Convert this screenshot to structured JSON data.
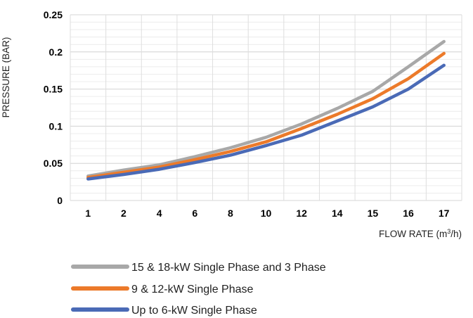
{
  "chart_data": {
    "type": "line",
    "categories": [
      "1",
      "2",
      "4",
      "6",
      "8",
      "10",
      "12",
      "14",
      "15",
      "16",
      "17"
    ],
    "ylabel": "PRESSURE (BAR)",
    "xlabel_main": "FLOW RATE (m",
    "xlabel_sup": "3",
    "xlabel_tail": "/h)",
    "ylim": [
      0,
      0.25
    ],
    "yticks": [
      0,
      0.05,
      0.1,
      0.15,
      0.2,
      0.25
    ],
    "ytick_labels": [
      "0",
      "0.05",
      "0.1",
      "0.15",
      "0.2",
      "0.25"
    ],
    "grid": true,
    "legend_position": "bottom",
    "series": [
      {
        "name": "15 & 18-kW Single Phase and 3 Phase",
        "color": "#a8a8a8",
        "values": [
          0.033,
          0.041,
          0.048,
          0.059,
          0.071,
          0.085,
          0.103,
          0.124,
          0.147,
          0.18,
          0.214
        ]
      },
      {
        "name": "9 & 12-kW Single Phase",
        "color": "#ec7a2a",
        "values": [
          0.031,
          0.038,
          0.045,
          0.055,
          0.066,
          0.079,
          0.097,
          0.116,
          0.137,
          0.164,
          0.198
        ]
      },
      {
        "name": "Up to 6-kW Single Phase",
        "color": "#4a6ab6",
        "values": [
          0.029,
          0.035,
          0.042,
          0.051,
          0.061,
          0.074,
          0.088,
          0.107,
          0.126,
          0.15,
          0.182
        ]
      }
    ]
  }
}
